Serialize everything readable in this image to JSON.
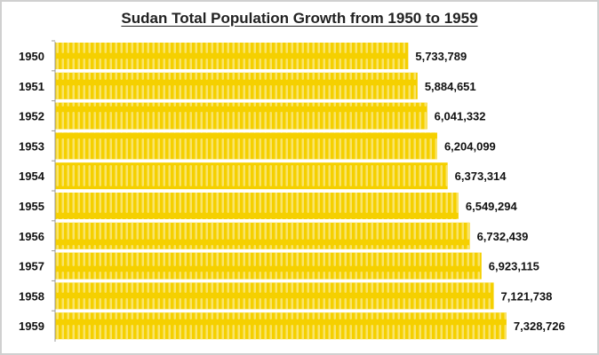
{
  "chart_data": {
    "type": "bar",
    "orientation": "horizontal",
    "title": "Sudan Total Population Growth from 1950 to 1959",
    "categories": [
      "1950",
      "1951",
      "1952",
      "1953",
      "1954",
      "1955",
      "1956",
      "1957",
      "1958",
      "1959"
    ],
    "values": [
      5733789,
      5884651,
      6041332,
      6204099,
      6373314,
      6549294,
      6732439,
      6923115,
      7121738,
      7328726
    ],
    "value_labels": [
      "5,733,789",
      "5,884,651",
      "6,041,332",
      "6,204,099",
      "6,373,314",
      "6,549,294",
      "6,732,439",
      "6,923,115",
      "7,121,738",
      "7,328,726"
    ],
    "xlabel": "",
    "ylabel": "",
    "xlim": [
      0,
      8600000
    ],
    "grid": false,
    "bar_color": "#f5d000",
    "bar_pattern_color": "#f9e46a"
  }
}
